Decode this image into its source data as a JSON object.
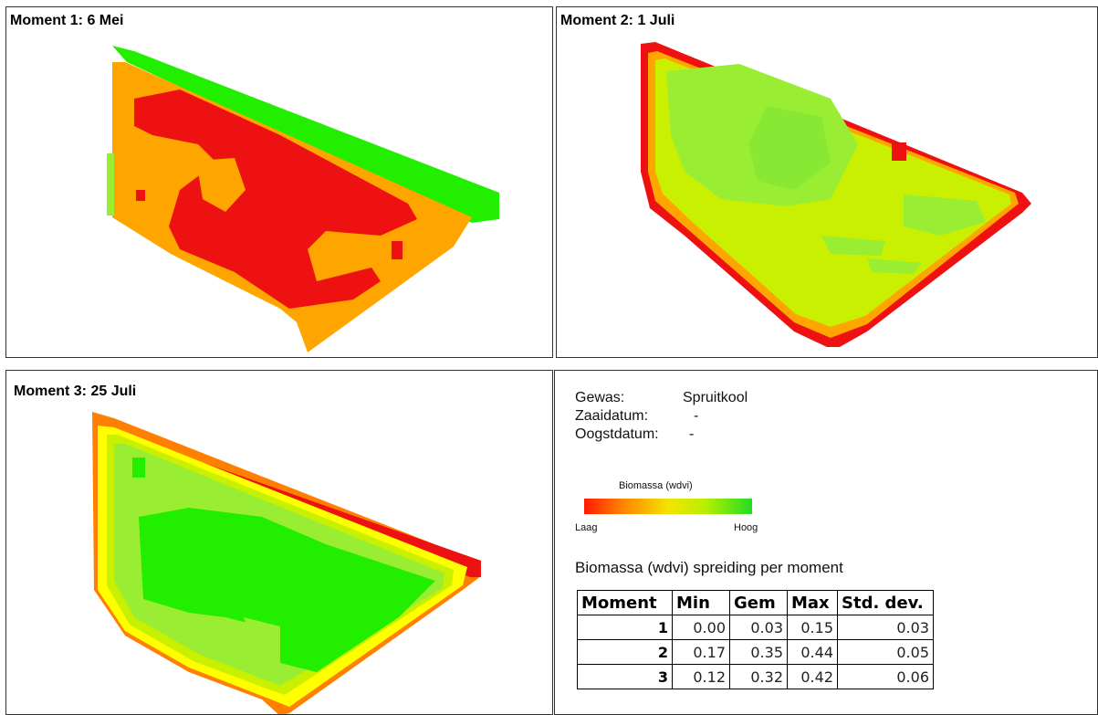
{
  "panels": [
    {
      "title": "Moment 1: 6 Mei"
    },
    {
      "title": "Moment 2: 1 Juli"
    },
    {
      "title": "Moment 3: 25 Juli"
    }
  ],
  "info": {
    "gewas_label": "Gewas:",
    "gewas_value": "Spruitkool",
    "zaaidatum_label": "Zaaidatum:",
    "zaaidatum_value": "-",
    "oogstdatum_label": "Oogstdatum:",
    "oogstdatum_value": "-"
  },
  "legend": {
    "title": "Biomassa (wdvi)",
    "low": "Laag",
    "high": "Hoog",
    "colors": [
      "#ff1a00",
      "#ff8000",
      "#f4e400",
      "#b8ef00",
      "#22dd22"
    ]
  },
  "stats": {
    "title": "Biomassa (wdvi) spreiding per moment",
    "headers": [
      "Moment",
      "Min",
      "Gem",
      "Max",
      "Std. dev."
    ],
    "rows": [
      [
        "1",
        "0.00",
        "0.03",
        "0.15",
        "0.03"
      ],
      [
        "2",
        "0.17",
        "0.35",
        "0.44",
        "0.05"
      ],
      [
        "3",
        "0.12",
        "0.32",
        "0.42",
        "0.06"
      ]
    ]
  },
  "map_colors": {
    "red": "#ee1111",
    "orange": "#ffa500",
    "yellow": "#ffff00",
    "yellow_green": "#c8f000",
    "light_green": "#99ee33",
    "green": "#22ee00"
  }
}
